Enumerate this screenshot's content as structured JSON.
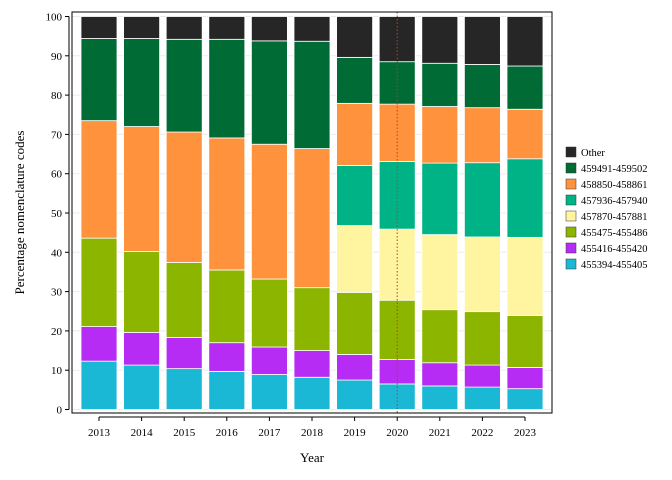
{
  "chart_data": {
    "type": "bar",
    "stacked": true,
    "xlabel": "Year",
    "ylabel": "Percentage nomenclature codes",
    "ylim": [
      0,
      100
    ],
    "yticks": [
      0,
      10,
      20,
      30,
      40,
      50,
      60,
      70,
      80,
      90,
      100
    ],
    "grid": true,
    "legend_position": "right",
    "reference_line": {
      "x": "2020",
      "style": "dotted",
      "color": "#c0392b"
    },
    "categories": [
      "2013",
      "2014",
      "2015",
      "2016",
      "2017",
      "2018",
      "2019",
      "2020",
      "2021",
      "2022",
      "2023"
    ],
    "series": [
      {
        "name": "455394-455405",
        "color": "#1ab8d4",
        "values": [
          12.3,
          11.3,
          10.4,
          9.7,
          8.9,
          8.2,
          7.5,
          6.5,
          6.0,
          5.7,
          5.3
        ]
      },
      {
        "name": "455416-455420",
        "color": "#b72cf5",
        "values": [
          8.8,
          8.3,
          7.9,
          7.3,
          7.0,
          6.8,
          6.5,
          6.2,
          5.9,
          5.6,
          5.4
        ]
      },
      {
        "name": "455475-455486",
        "color": "#8cb500",
        "values": [
          22.5,
          20.6,
          19.1,
          18.5,
          17.3,
          16.0,
          15.8,
          15.1,
          13.5,
          13.6,
          13.2
        ]
      },
      {
        "name": "457870-457881",
        "color": "#fff5a0",
        "values": [
          0,
          0,
          0,
          0,
          0,
          0,
          17.0,
          18.1,
          19.1,
          19.0,
          19.9
        ]
      },
      {
        "name": "457936-457940",
        "color": "#00b386",
        "values": [
          0,
          0,
          0,
          0,
          0,
          0,
          15.3,
          17.2,
          18.2,
          18.9,
          20.0
        ]
      },
      {
        "name": "458850-458861",
        "color": "#ff923c",
        "values": [
          29.9,
          31.8,
          33.2,
          33.6,
          34.3,
          35.4,
          15.8,
          14.6,
          14.4,
          14.0,
          12.6
        ]
      },
      {
        "name": "459491-459502",
        "color": "#006b34",
        "values": [
          20.9,
          22.4,
          23.6,
          25.1,
          26.3,
          27.3,
          11.7,
          10.8,
          11.0,
          11.0,
          11.0
        ]
      },
      {
        "name": "Other",
        "color": "#262626",
        "values": [
          5.6,
          5.6,
          5.8,
          5.8,
          6.2,
          6.3,
          10.4,
          11.5,
          11.9,
          12.2,
          12.6
        ]
      }
    ]
  }
}
